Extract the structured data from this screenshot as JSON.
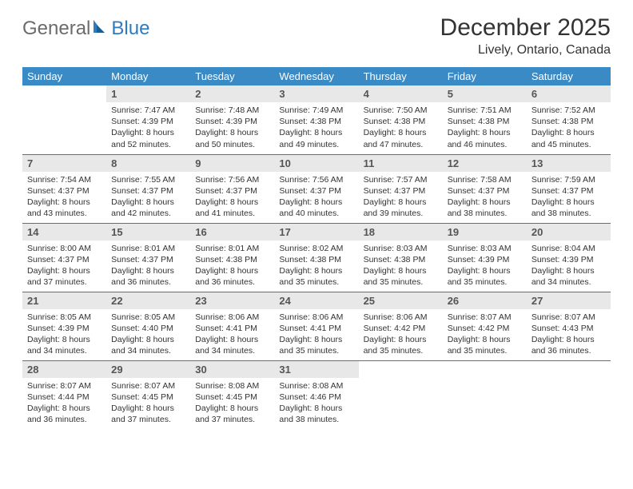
{
  "brand": {
    "part1": "General",
    "part2": "Blue"
  },
  "title": "December 2025",
  "location": "Lively, Ontario, Canada",
  "colors": {
    "header_bg": "#3a8ac6",
    "header_text": "#ffffff",
    "daynum_bg": "#e8e8e8",
    "row_border": "#2f7bbf",
    "logo_gray": "#6b6b6b",
    "logo_blue": "#2f7bbf",
    "body_text": "#333333",
    "page_bg": "#ffffff"
  },
  "typography": {
    "title_fontsize": 30,
    "location_fontsize": 16,
    "dayheader_fontsize": 13,
    "daynum_fontsize": 13,
    "cell_fontsize": 10.5
  },
  "day_headers": [
    "Sunday",
    "Monday",
    "Tuesday",
    "Wednesday",
    "Thursday",
    "Friday",
    "Saturday"
  ],
  "weeks": [
    [
      {
        "n": "",
        "sr": "",
        "ss": "",
        "dl": ""
      },
      {
        "n": "1",
        "sr": "Sunrise: 7:47 AM",
        "ss": "Sunset: 4:39 PM",
        "dl": "Daylight: 8 hours and 52 minutes."
      },
      {
        "n": "2",
        "sr": "Sunrise: 7:48 AM",
        "ss": "Sunset: 4:39 PM",
        "dl": "Daylight: 8 hours and 50 minutes."
      },
      {
        "n": "3",
        "sr": "Sunrise: 7:49 AM",
        "ss": "Sunset: 4:38 PM",
        "dl": "Daylight: 8 hours and 49 minutes."
      },
      {
        "n": "4",
        "sr": "Sunrise: 7:50 AM",
        "ss": "Sunset: 4:38 PM",
        "dl": "Daylight: 8 hours and 47 minutes."
      },
      {
        "n": "5",
        "sr": "Sunrise: 7:51 AM",
        "ss": "Sunset: 4:38 PM",
        "dl": "Daylight: 8 hours and 46 minutes."
      },
      {
        "n": "6",
        "sr": "Sunrise: 7:52 AM",
        "ss": "Sunset: 4:38 PM",
        "dl": "Daylight: 8 hours and 45 minutes."
      }
    ],
    [
      {
        "n": "7",
        "sr": "Sunrise: 7:54 AM",
        "ss": "Sunset: 4:37 PM",
        "dl": "Daylight: 8 hours and 43 minutes."
      },
      {
        "n": "8",
        "sr": "Sunrise: 7:55 AM",
        "ss": "Sunset: 4:37 PM",
        "dl": "Daylight: 8 hours and 42 minutes."
      },
      {
        "n": "9",
        "sr": "Sunrise: 7:56 AM",
        "ss": "Sunset: 4:37 PM",
        "dl": "Daylight: 8 hours and 41 minutes."
      },
      {
        "n": "10",
        "sr": "Sunrise: 7:56 AM",
        "ss": "Sunset: 4:37 PM",
        "dl": "Daylight: 8 hours and 40 minutes."
      },
      {
        "n": "11",
        "sr": "Sunrise: 7:57 AM",
        "ss": "Sunset: 4:37 PM",
        "dl": "Daylight: 8 hours and 39 minutes."
      },
      {
        "n": "12",
        "sr": "Sunrise: 7:58 AM",
        "ss": "Sunset: 4:37 PM",
        "dl": "Daylight: 8 hours and 38 minutes."
      },
      {
        "n": "13",
        "sr": "Sunrise: 7:59 AM",
        "ss": "Sunset: 4:37 PM",
        "dl": "Daylight: 8 hours and 38 minutes."
      }
    ],
    [
      {
        "n": "14",
        "sr": "Sunrise: 8:00 AM",
        "ss": "Sunset: 4:37 PM",
        "dl": "Daylight: 8 hours and 37 minutes."
      },
      {
        "n": "15",
        "sr": "Sunrise: 8:01 AM",
        "ss": "Sunset: 4:37 PM",
        "dl": "Daylight: 8 hours and 36 minutes."
      },
      {
        "n": "16",
        "sr": "Sunrise: 8:01 AM",
        "ss": "Sunset: 4:38 PM",
        "dl": "Daylight: 8 hours and 36 minutes."
      },
      {
        "n": "17",
        "sr": "Sunrise: 8:02 AM",
        "ss": "Sunset: 4:38 PM",
        "dl": "Daylight: 8 hours and 35 minutes."
      },
      {
        "n": "18",
        "sr": "Sunrise: 8:03 AM",
        "ss": "Sunset: 4:38 PM",
        "dl": "Daylight: 8 hours and 35 minutes."
      },
      {
        "n": "19",
        "sr": "Sunrise: 8:03 AM",
        "ss": "Sunset: 4:39 PM",
        "dl": "Daylight: 8 hours and 35 minutes."
      },
      {
        "n": "20",
        "sr": "Sunrise: 8:04 AM",
        "ss": "Sunset: 4:39 PM",
        "dl": "Daylight: 8 hours and 34 minutes."
      }
    ],
    [
      {
        "n": "21",
        "sr": "Sunrise: 8:05 AM",
        "ss": "Sunset: 4:39 PM",
        "dl": "Daylight: 8 hours and 34 minutes."
      },
      {
        "n": "22",
        "sr": "Sunrise: 8:05 AM",
        "ss": "Sunset: 4:40 PM",
        "dl": "Daylight: 8 hours and 34 minutes."
      },
      {
        "n": "23",
        "sr": "Sunrise: 8:06 AM",
        "ss": "Sunset: 4:41 PM",
        "dl": "Daylight: 8 hours and 34 minutes."
      },
      {
        "n": "24",
        "sr": "Sunrise: 8:06 AM",
        "ss": "Sunset: 4:41 PM",
        "dl": "Daylight: 8 hours and 35 minutes."
      },
      {
        "n": "25",
        "sr": "Sunrise: 8:06 AM",
        "ss": "Sunset: 4:42 PM",
        "dl": "Daylight: 8 hours and 35 minutes."
      },
      {
        "n": "26",
        "sr": "Sunrise: 8:07 AM",
        "ss": "Sunset: 4:42 PM",
        "dl": "Daylight: 8 hours and 35 minutes."
      },
      {
        "n": "27",
        "sr": "Sunrise: 8:07 AM",
        "ss": "Sunset: 4:43 PM",
        "dl": "Daylight: 8 hours and 36 minutes."
      }
    ],
    [
      {
        "n": "28",
        "sr": "Sunrise: 8:07 AM",
        "ss": "Sunset: 4:44 PM",
        "dl": "Daylight: 8 hours and 36 minutes."
      },
      {
        "n": "29",
        "sr": "Sunrise: 8:07 AM",
        "ss": "Sunset: 4:45 PM",
        "dl": "Daylight: 8 hours and 37 minutes."
      },
      {
        "n": "30",
        "sr": "Sunrise: 8:08 AM",
        "ss": "Sunset: 4:45 PM",
        "dl": "Daylight: 8 hours and 37 minutes."
      },
      {
        "n": "31",
        "sr": "Sunrise: 8:08 AM",
        "ss": "Sunset: 4:46 PM",
        "dl": "Daylight: 8 hours and 38 minutes."
      },
      {
        "n": "",
        "sr": "",
        "ss": "",
        "dl": ""
      },
      {
        "n": "",
        "sr": "",
        "ss": "",
        "dl": ""
      },
      {
        "n": "",
        "sr": "",
        "ss": "",
        "dl": ""
      }
    ]
  ]
}
